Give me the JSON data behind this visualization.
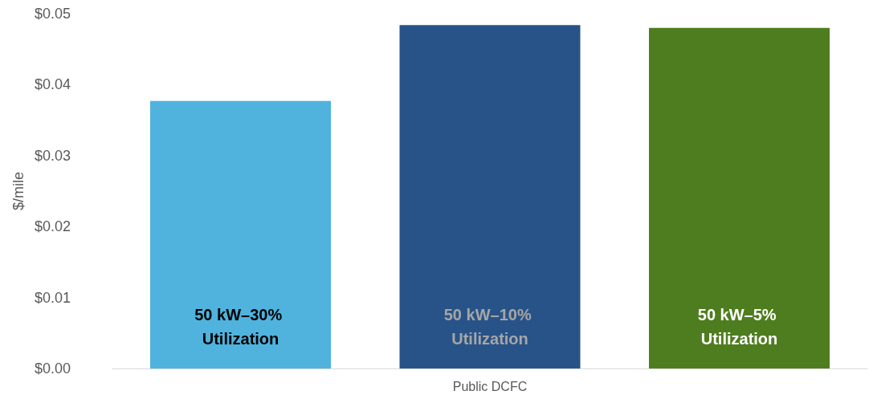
{
  "chart_data": {
    "type": "bar",
    "ylabel": "$/mile",
    "categories": [
      "Public DCFC"
    ],
    "series": [
      {
        "name": "50 kW–30% Utilization",
        "color": "#4fb3de",
        "values": [
          0.0377
        ]
      },
      {
        "name": "50 kW–10% Utilization",
        "color": "#285388",
        "values": [
          0.0484
        ]
      },
      {
        "name": "50 kW–5% Utilization",
        "color": "#4e7d1f",
        "values": [
          0.048
        ]
      }
    ],
    "ylim": [
      0,
      0.05
    ],
    "yticks": [
      {
        "value": 0,
        "label": "$0.00"
      },
      {
        "value": 0.01,
        "label": "$0.01"
      },
      {
        "value": 0.02,
        "label": "$0.02"
      },
      {
        "value": 0.03,
        "label": "$0.03"
      },
      {
        "value": 0.04,
        "label": "$0.04"
      },
      {
        "value": 0.05,
        "label": "$0.05"
      }
    ],
    "grid": false,
    "legend": false
  }
}
